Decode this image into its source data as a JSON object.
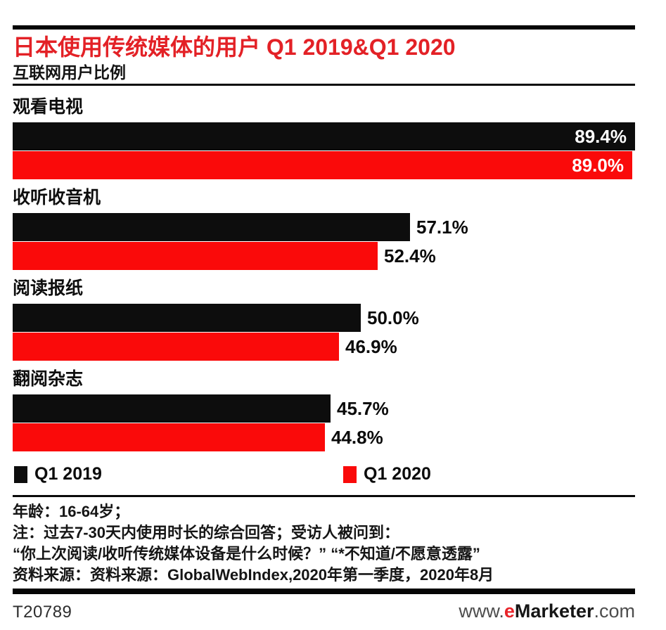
{
  "header": {
    "title": "日本使用传统媒体的用户 Q1 2019&Q1 2020",
    "subtitle": "互联网用户比例",
    "title_color": "#e32126"
  },
  "chart_data": {
    "type": "bar",
    "orientation": "horizontal",
    "title": "日本使用传统媒体的用户 Q1 2019&Q1 2020",
    "subtitle": "互联网用户比例",
    "unit": "%",
    "xlim": [
      0,
      100
    ],
    "grid": false,
    "legend_position": "bottom",
    "value_label_style": "inside-white-when-long, outside-black-when-short",
    "categories": [
      "观看电视",
      "收听收音机",
      "阅读报纸",
      "翻阅杂志"
    ],
    "series": [
      {
        "name": "Q1 2019",
        "color": "#0d0d0d",
        "values": [
          89.4,
          57.1,
          50.0,
          45.7
        ]
      },
      {
        "name": "Q1 2020",
        "color": "#fa0a0a",
        "values": [
          89.0,
          52.4,
          46.9,
          44.8
        ]
      }
    ]
  },
  "legend": {
    "items": [
      {
        "label": "Q1 2019",
        "color": "#0d0d0d"
      },
      {
        "label": "Q1 2020",
        "color": "#fa0a0a"
      }
    ]
  },
  "footnotes": {
    "lines": [
      "年龄：16-64岁；",
      "注：过去7-30天内使用时长的综合回答；受访人被问到：",
      "“你上次阅读/收听传统媒体设备是什么时候？” “*不知道/不愿意透露”",
      "资料来源：资料来源：GlobalWebIndex,2020年第一季度，2020年8月"
    ]
  },
  "footer": {
    "chart_id": "T20789",
    "site": {
      "www": "www.",
      "e": "e",
      "marketer": "Marketer",
      "com": ".com"
    }
  }
}
